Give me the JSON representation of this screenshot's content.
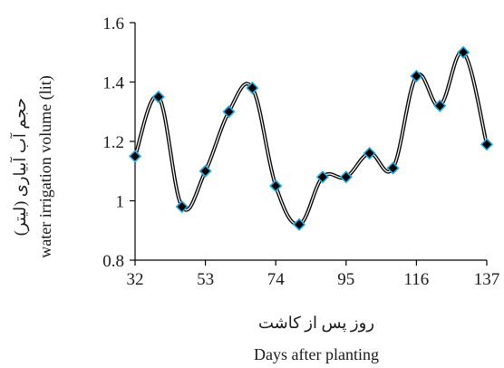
{
  "chart_data": {
    "type": "line",
    "x": [
      32,
      39,
      46,
      53,
      60,
      67,
      74,
      81,
      88,
      95,
      102,
      109,
      116,
      123,
      130,
      137
    ],
    "series": [
      {
        "values": [
          1.15,
          1.35,
          0.98,
          1.1,
          1.3,
          1.38,
          1.05,
          0.92,
          1.08,
          1.08,
          1.16,
          1.11,
          1.42,
          1.32,
          1.5,
          1.19
        ]
      }
    ],
    "xticks": [
      "32",
      "53",
      "74",
      "95",
      "116",
      "137"
    ],
    "yticks": [
      "0.8",
      "1",
      "1.2",
      "1.4",
      "1.6"
    ],
    "xlim": [
      32,
      137
    ],
    "ylim": [
      0.8,
      1.6
    ],
    "xlabel_fa": "روز پس از کاشت",
    "xlabel": "Days after planting",
    "ylabel_fa": "حجم آب آبیاری (لیتر)",
    "ylabel": "water irrigation volume (lit)",
    "grid": false,
    "line_color": "#000000",
    "marker_fill": "#000000",
    "marker_edge": "#29a8e0"
  }
}
